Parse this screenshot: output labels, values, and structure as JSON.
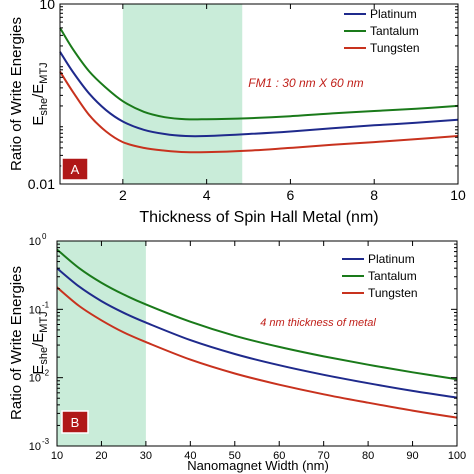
{
  "colors": {
    "platinum": "#1f2a8c",
    "tantalum": "#1a7a1a",
    "tungsten": "#c8321e",
    "highlight": "#c9ecd9",
    "badge": "#b01818",
    "note_a": "#c0201a",
    "note_b": "#c0201a"
  },
  "chart_data": [
    {
      "id": "A",
      "type": "line",
      "panel_label": "A",
      "xlabel": "Thickness of Spin Hall Metal (nm)",
      "ylabel_line1": "Ratio of Write Energies",
      "ylabel_main": "E",
      "ylabel_sub1": "she",
      "ylabel_slash": "/E",
      "ylabel_sub2": "MTJ",
      "yscale": "log",
      "xlim": [
        0.5,
        10
      ],
      "ylim": [
        0.01,
        10
      ],
      "xticks": [
        2,
        4,
        6,
        8,
        10
      ],
      "xtick_labels": [
        "2",
        "4",
        "6",
        "8",
        "10"
      ],
      "yticks": [
        0.01,
        10
      ],
      "ytick_labels": [
        "0.01",
        "10"
      ],
      "highlight_range": [
        2,
        4.85
      ],
      "annotation": "FM1 : 30 nm X 60 nm",
      "legend": [
        "Platinum",
        "Tantalum",
        "Tungsten"
      ],
      "series": [
        {
          "name": "Platinum",
          "color_key": "platinum",
          "x": [
            0.5,
            0.8,
            1.2,
            1.6,
            2.0,
            2.5,
            3.0,
            3.5,
            4.0,
            5.0,
            6.0,
            7.0,
            8.0,
            9.0,
            10.0
          ],
          "y": [
            1.6,
            0.75,
            0.32,
            0.17,
            0.11,
            0.08,
            0.068,
            0.063,
            0.063,
            0.068,
            0.075,
            0.085,
            0.095,
            0.105,
            0.118
          ]
        },
        {
          "name": "Tantalum",
          "color_key": "tantalum",
          "x": [
            0.5,
            0.8,
            1.2,
            1.6,
            2.0,
            2.5,
            3.0,
            3.5,
            4.0,
            5.0,
            6.0,
            7.0,
            8.0,
            9.0,
            10.0
          ],
          "y": [
            4.0,
            1.8,
            0.75,
            0.4,
            0.24,
            0.16,
            0.13,
            0.12,
            0.12,
            0.125,
            0.135,
            0.15,
            0.165,
            0.18,
            0.2
          ]
        },
        {
          "name": "Tungsten",
          "color_key": "tungsten",
          "x": [
            0.5,
            0.8,
            1.2,
            1.6,
            2.0,
            2.5,
            3.0,
            3.5,
            4.0,
            5.0,
            6.0,
            7.0,
            8.0,
            9.0,
            10.0
          ],
          "y": [
            0.75,
            0.35,
            0.14,
            0.075,
            0.05,
            0.04,
            0.036,
            0.034,
            0.034,
            0.036,
            0.04,
            0.045,
            0.05,
            0.056,
            0.063
          ]
        }
      ]
    },
    {
      "id": "B",
      "type": "line",
      "panel_label": "B",
      "xlabel": "Nanomagnet Width (nm)",
      "ylabel_line1": "Ratio of Write Energies",
      "ylabel_main": "E",
      "ylabel_sub1": "she",
      "ylabel_slash": "/E",
      "ylabel_sub2": "MTJ",
      "yscale": "log",
      "xlim": [
        10,
        100
      ],
      "ylim": [
        0.001,
        1
      ],
      "xticks": [
        10,
        20,
        30,
        40,
        50,
        60,
        70,
        80,
        90,
        100
      ],
      "xtick_labels": [
        "10",
        "20",
        "30",
        "40",
        "50",
        "60",
        "70",
        "80",
        "90",
        "100"
      ],
      "yticks": [
        0.001,
        0.01,
        0.1,
        1
      ],
      "ytick_base": "10",
      "ytick_exponents": [
        "-3",
        "-2",
        "-1",
        "0"
      ],
      "highlight_range": [
        10,
        30
      ],
      "annotation": "4 nm thickness of metal",
      "legend": [
        "Platinum",
        "Tantalum",
        "Tungsten"
      ],
      "series": [
        {
          "name": "Platinum",
          "color_key": "platinum",
          "x": [
            10,
            15,
            20,
            25,
            30,
            40,
            50,
            60,
            70,
            80,
            90,
            100
          ],
          "y": [
            0.4,
            0.215,
            0.132,
            0.089,
            0.064,
            0.0355,
            0.0222,
            0.0152,
            0.011,
            0.0083,
            0.0064,
            0.0051
          ]
        },
        {
          "name": "Tantalum",
          "color_key": "tantalum",
          "x": [
            10,
            15,
            20,
            25,
            30,
            40,
            50,
            60,
            70,
            80,
            90,
            100
          ],
          "y": [
            0.75,
            0.4,
            0.245,
            0.165,
            0.118,
            0.066,
            0.041,
            0.0282,
            0.0205,
            0.0155,
            0.012,
            0.0095
          ]
        },
        {
          "name": "Tungsten",
          "color_key": "tungsten",
          "x": [
            10,
            15,
            20,
            25,
            30,
            40,
            50,
            60,
            70,
            80,
            90,
            100
          ],
          "y": [
            0.21,
            0.112,
            0.069,
            0.046,
            0.0332,
            0.0184,
            0.0115,
            0.0079,
            0.0057,
            0.0043,
            0.0033,
            0.0026
          ]
        }
      ]
    }
  ]
}
